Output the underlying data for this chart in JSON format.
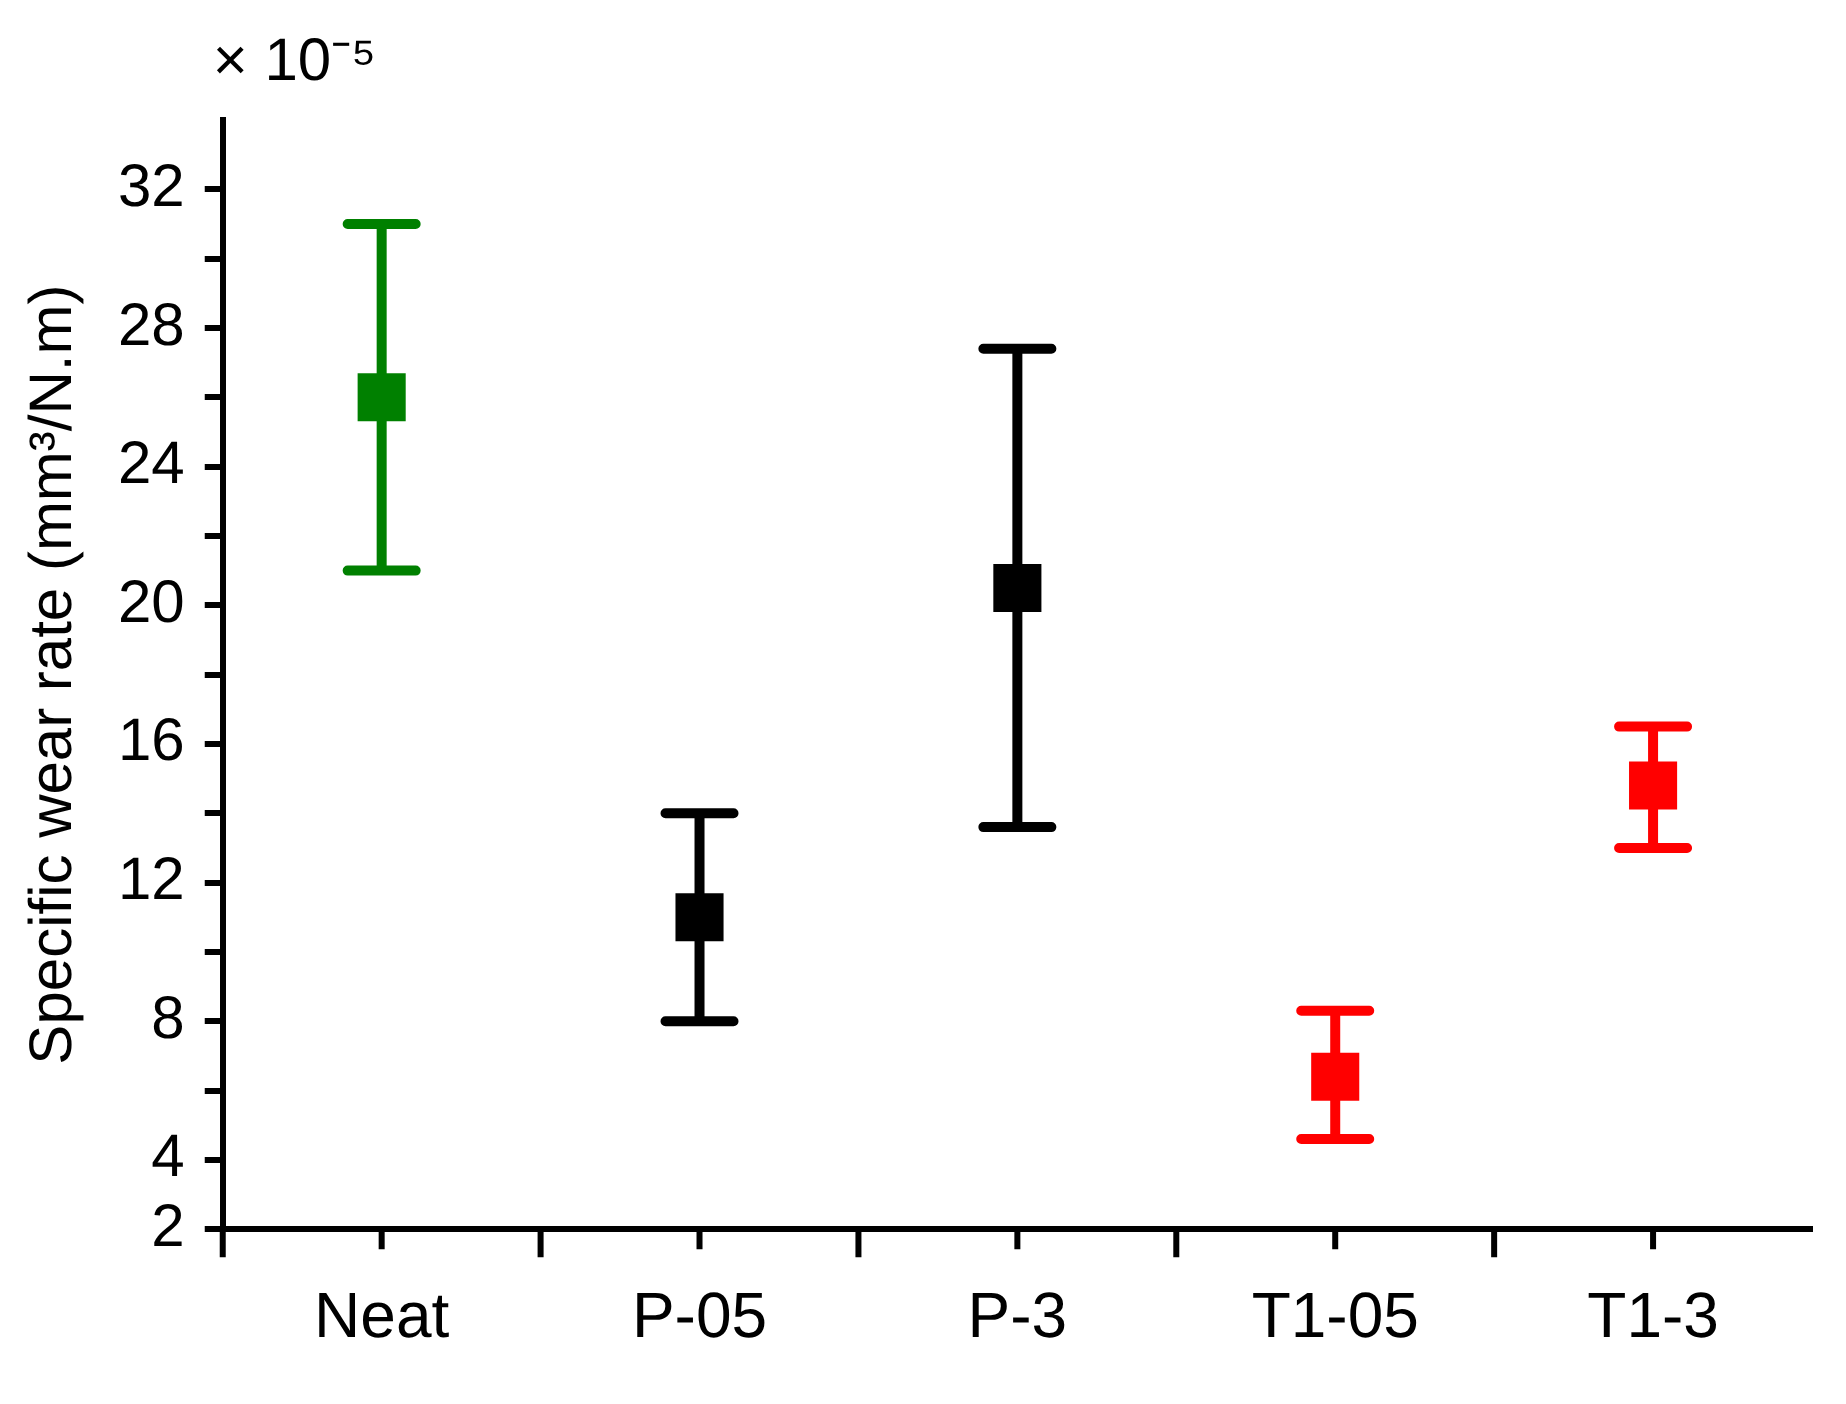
{
  "chart_data": {
    "type": "scatter",
    "ylabel": "Specific wear rate (mm³/N.m)",
    "annotations": [
      "× 10⁻⁵"
    ],
    "categories": [
      "Neat",
      "P-05",
      "P-3",
      "T1-05",
      "T1-3"
    ],
    "values": [
      26,
      11,
      20.5,
      6.4,
      14.8
    ],
    "colors": [
      "#008000",
      "#000000",
      "#000000",
      "#ff0000",
      "#ff0000"
    ],
    "errors": [
      [
        21,
        31
      ],
      [
        8,
        14
      ],
      [
        13.6,
        27.4
      ],
      [
        4.6,
        8.3
      ],
      [
        13,
        16.5
      ]
    ],
    "ylim": [
      2,
      34
    ],
    "yticks": [
      2,
      4,
      {
        "value": 6,
        "label": null
      },
      8,
      {
        "value": 10,
        "label": null
      },
      12,
      {
        "value": 14,
        "label": null
      },
      16,
      {
        "value": 18,
        "label": null
      },
      20,
      {
        "value": 22,
        "label": null
      },
      24,
      {
        "value": 26,
        "label": null
      },
      28,
      {
        "value": 30,
        "label": null
      },
      32
    ],
    "marker": "square"
  }
}
